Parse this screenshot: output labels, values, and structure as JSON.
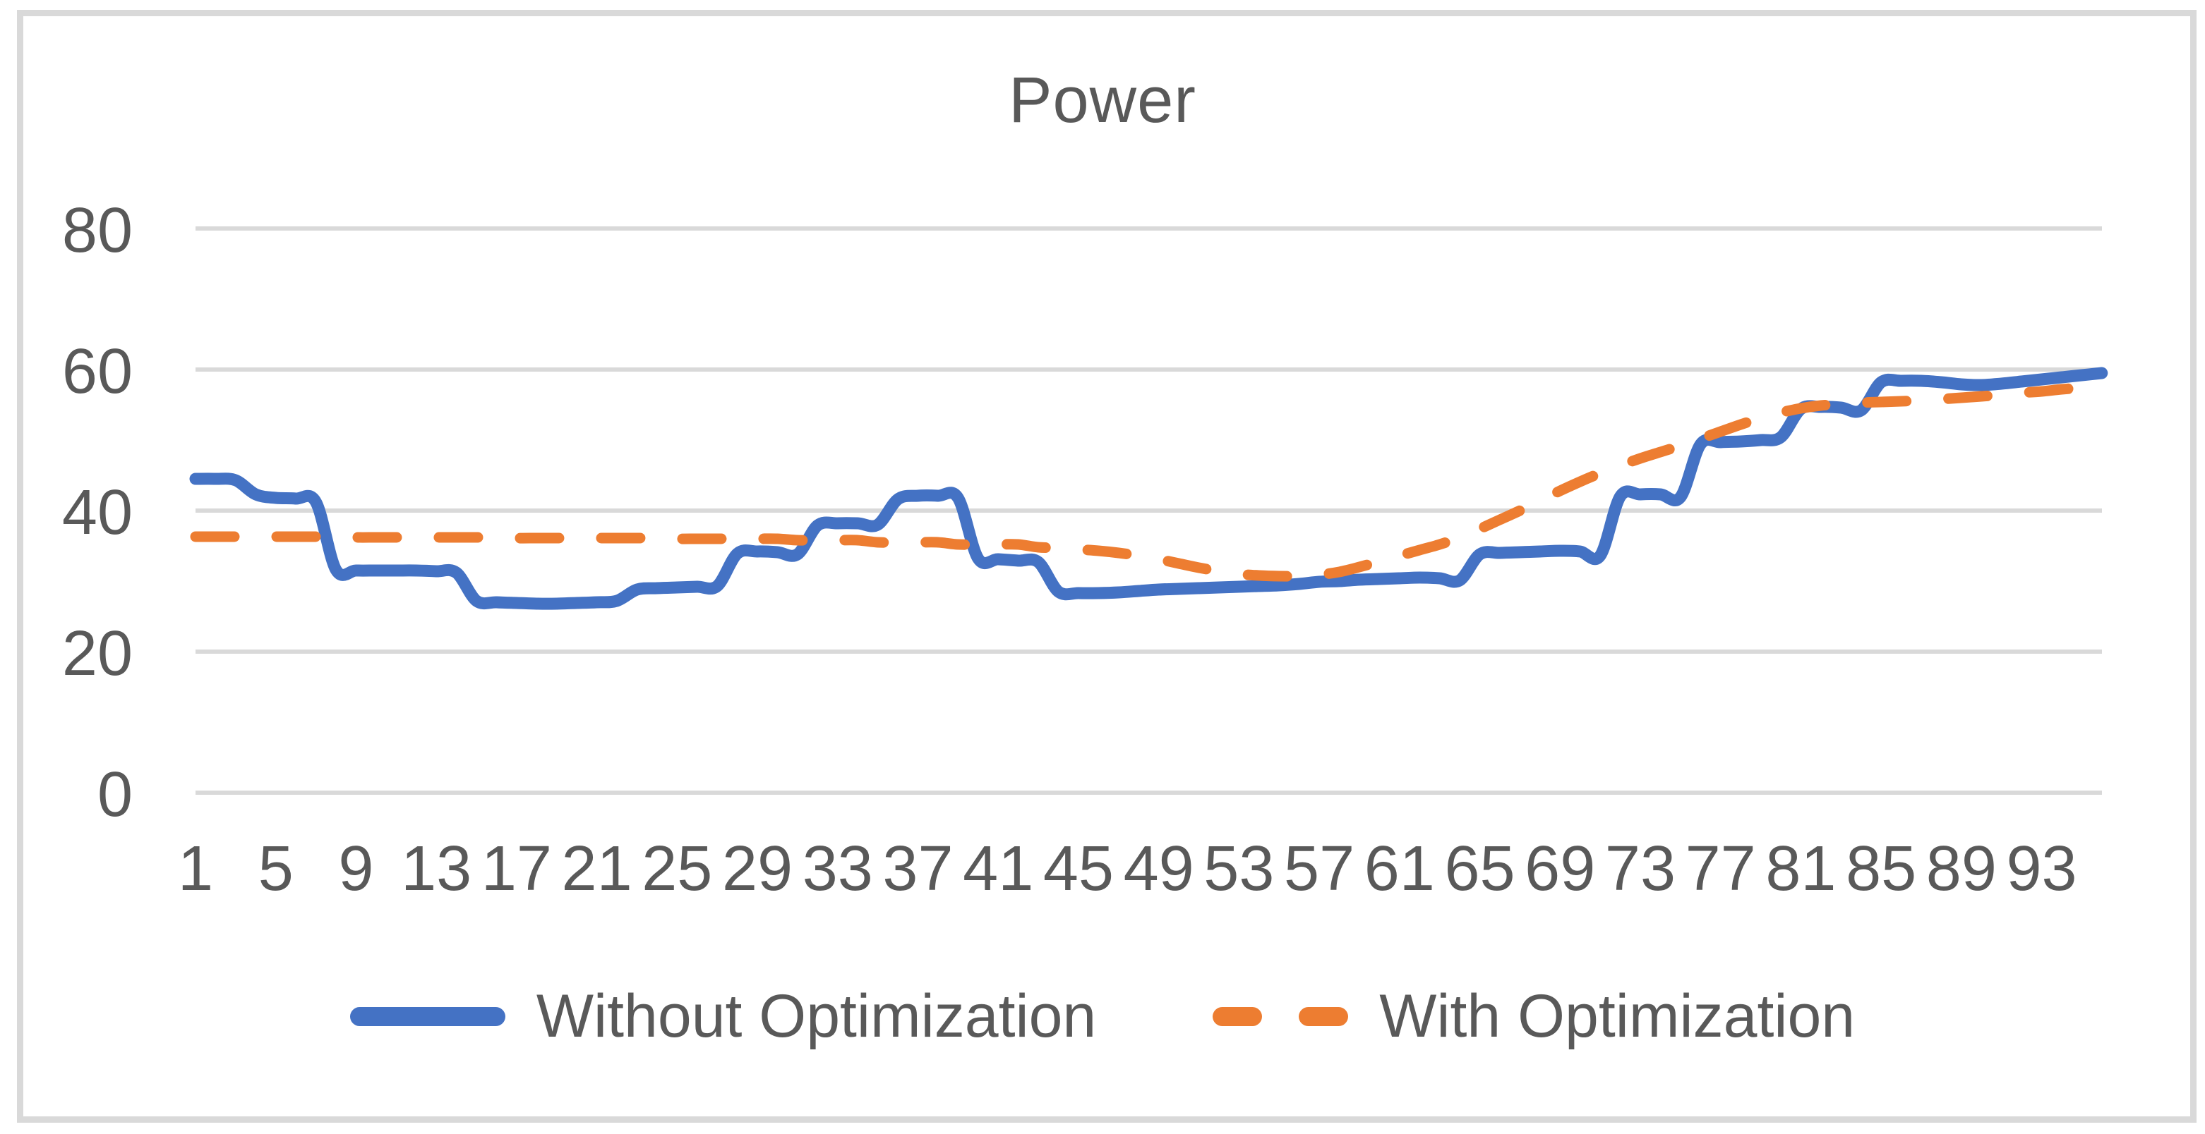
{
  "title": "Power",
  "legend": {
    "items": [
      {
        "label": "Without Optimization",
        "color": "#4472C4",
        "style": "solid"
      },
      {
        "label": "With Optimization",
        "color": "#ED7D31",
        "style": "dashed"
      }
    ]
  },
  "colors": {
    "series_without_optimization": "#4472C4",
    "series_with_optimization": "#ED7D31",
    "gridline": "#D9D9D9",
    "chart_border": "#D9D9D9",
    "text": "#595959"
  },
  "chart_data": {
    "type": "line",
    "title": "Power",
    "x_range": [
      1,
      96
    ],
    "xtick_labels": [
      1,
      5,
      9,
      13,
      17,
      21,
      25,
      29,
      33,
      37,
      41,
      45,
      49,
      53,
      57,
      61,
      65,
      69,
      73,
      77,
      81,
      85,
      89,
      93
    ],
    "yticks": [
      0,
      20,
      40,
      60,
      80
    ],
    "ylim": [
      0,
      88
    ],
    "grid": "horizontal",
    "legend_position": "bottom",
    "series": [
      {
        "name": "Without Optimization",
        "id": "without-optimization",
        "color": "#4472C4",
        "line_style": "solid",
        "values": [
          44.5,
          44.5,
          44.3,
          42.3,
          41.8,
          41.7,
          41.2,
          31.6,
          31.5,
          31.5,
          31.5,
          31.5,
          31.4,
          31.2,
          27.2,
          27.0,
          26.9,
          26.8,
          26.8,
          26.9,
          27.0,
          27.2,
          28.8,
          29.0,
          29.1,
          29.2,
          29.3,
          33.9,
          34.2,
          34.1,
          33.8,
          37.9,
          38.2,
          38.2,
          38.0,
          41.6,
          42.1,
          42.1,
          41.8,
          33.2,
          33.1,
          32.9,
          32.7,
          28.5,
          28.3,
          28.3,
          28.4,
          28.6,
          28.8,
          28.9,
          29.0,
          29.1,
          29.2,
          29.3,
          29.4,
          29.6,
          29.9,
          30.0,
          30.2,
          30.3,
          30.4,
          30.5,
          30.4,
          30.1,
          33.8,
          34.0,
          34.1,
          34.2,
          34.3,
          34.2,
          33.6,
          42.0,
          42.3,
          42.3,
          41.9,
          49.4,
          49.7,
          49.8,
          50.0,
          50.4,
          54.4,
          54.7,
          54.6,
          54.2,
          58.2,
          58.4,
          58.4,
          58.2,
          57.9,
          57.8,
          58.0,
          58.3,
          58.6,
          58.9,
          59.2,
          59.5
        ]
      },
      {
        "name": "With Optimization",
        "id": "with-optimization",
        "color": "#ED7D31",
        "line_style": "dashed",
        "values": [
          36.3,
          36.3,
          36.3,
          36.3,
          36.3,
          36.3,
          36.3,
          36.3,
          36.2,
          36.2,
          36.2,
          36.2,
          36.2,
          36.2,
          36.2,
          36.2,
          36.1,
          36.1,
          36.1,
          36.1,
          36.1,
          36.1,
          36.1,
          36.1,
          36.0,
          36.0,
          36.0,
          36.0,
          36.0,
          36.0,
          35.8,
          35.8,
          35.8,
          35.8,
          35.5,
          35.5,
          35.5,
          35.5,
          35.2,
          35.2,
          35.2,
          35.2,
          34.8,
          34.7,
          34.5,
          34.3,
          34.0,
          33.6,
          33.1,
          32.5,
          31.9,
          31.4,
          31.0,
          30.8,
          30.7,
          30.7,
          30.9,
          31.3,
          32.0,
          32.8,
          33.6,
          34.4,
          35.2,
          36.2,
          37.4,
          38.7,
          40.0,
          41.4,
          42.8,
          44.1,
          45.3,
          46.4,
          47.4,
          48.3,
          49.2,
          50.2,
          51.2,
          52.2,
          53.1,
          53.9,
          54.5,
          54.9,
          55.1,
          55.3,
          55.4,
          55.5,
          55.6,
          55.8,
          56.0,
          56.2,
          56.4,
          56.7,
          56.9,
          57.2,
          57.4,
          57.6
        ]
      }
    ]
  }
}
